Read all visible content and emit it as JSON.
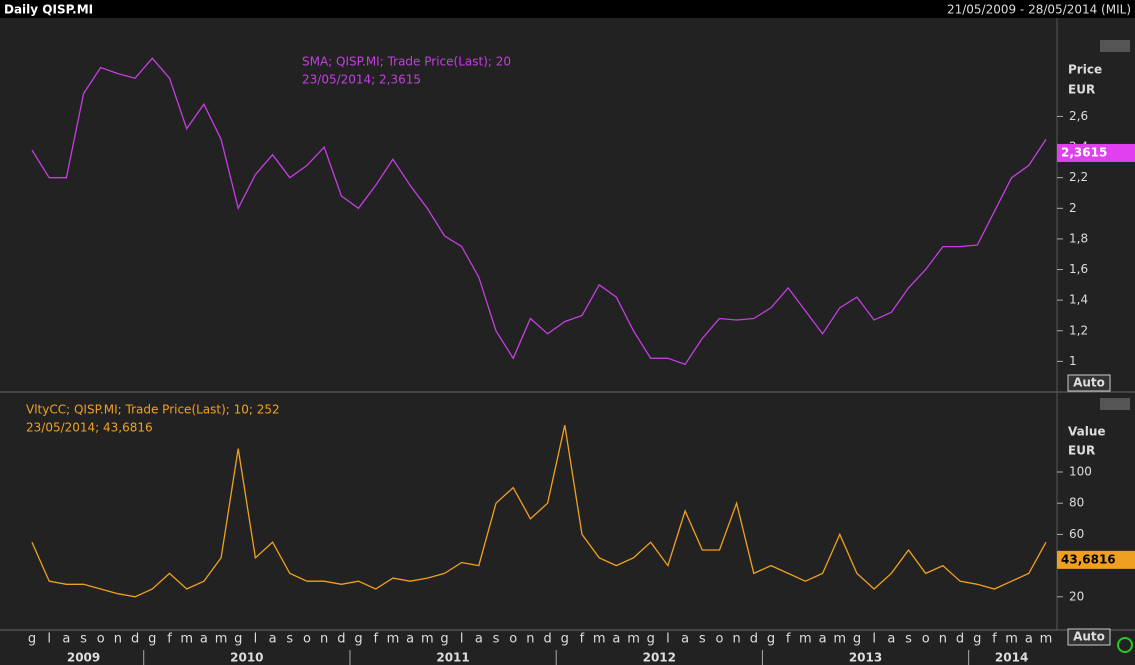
{
  "header": {
    "title": "Daily QISP.MI",
    "range": "21/05/2009 - 28/05/2014 (MIL)"
  },
  "x_axis": {
    "categories": [
      "g",
      "l",
      "a",
      "s",
      "o",
      "n",
      "d",
      "g",
      "f",
      "m",
      "a",
      "m",
      "g",
      "l",
      "a",
      "s",
      "o",
      "n",
      "d",
      "g",
      "f",
      "m",
      "a",
      "m",
      "g",
      "l",
      "a",
      "s",
      "o",
      "n",
      "d",
      "g",
      "f",
      "m",
      "a",
      "m",
      "g",
      "l",
      "a",
      "s",
      "o",
      "n",
      "d",
      "g",
      "f",
      "m",
      "a",
      "m",
      "g",
      "l",
      "a",
      "s",
      "o",
      "n",
      "d",
      "g",
      "f",
      "m",
      "a",
      "m"
    ],
    "years": [
      "2009",
      "2010",
      "2011",
      "2012",
      "2013",
      "2014"
    ]
  },
  "chart_data": [
    {
      "type": "line",
      "legend": [
        "SMA; QISP.MI; Trade Price(Last);  20",
        "23/05/2014; 2,3615"
      ],
      "y_label": "Price",
      "unit": "EUR",
      "auto": "Auto",
      "color": "#c43ee0",
      "marker_color": "#e040f0",
      "last": {
        "value": 2.3615,
        "label": "2,3615"
      },
      "ylim": [
        0.8,
        3.23
      ],
      "yticks": [
        1,
        {
          "value": 1.2,
          "label": "1,2"
        },
        {
          "value": 1.4,
          "label": "1,4"
        },
        {
          "value": 1.6,
          "label": "1,6"
        },
        {
          "value": 1.8,
          "label": "1,8"
        },
        2,
        {
          "value": 2.2,
          "label": "2,2"
        },
        {
          "value": 2.4,
          "label": "2,4"
        },
        {
          "value": 2.6,
          "label": "2,6"
        }
      ],
      "values": [
        2.38,
        2.2,
        2.2,
        2.75,
        2.92,
        2.88,
        2.85,
        2.98,
        2.85,
        2.52,
        2.68,
        2.45,
        2.0,
        2.22,
        2.35,
        2.2,
        2.28,
        2.4,
        2.08,
        2.0,
        2.15,
        2.32,
        2.15,
        2.0,
        1.82,
        1.75,
        1.55,
        1.2,
        1.02,
        1.28,
        1.18,
        1.26,
        1.3,
        1.5,
        1.42,
        1.2,
        1.02,
        1.02,
        0.98,
        1.15,
        1.28,
        1.27,
        1.28,
        1.35,
        1.48,
        1.33,
        1.18,
        1.35,
        1.42,
        1.27,
        1.32,
        1.48,
        1.6,
        1.75,
        1.75,
        1.76,
        1.98,
        2.2,
        2.28,
        2.45
      ]
    },
    {
      "type": "line",
      "legend": [
        "VltyCC; QISP.MI; Trade Price(Last);  10; 252",
        "23/05/2014; 43,6816"
      ],
      "y_label": "Value",
      "unit": "EUR",
      "auto": "Auto",
      "color": "#f0a020",
      "marker_color": "#f0a020",
      "last": {
        "value": 43.6816,
        "label": "43,6816"
      },
      "ylim": [
        0,
        150
      ],
      "yticks": [
        20,
        60,
        80,
        100
      ],
      "values": [
        55,
        30,
        28,
        28,
        25,
        22,
        20,
        25,
        35,
        25,
        30,
        45,
        115,
        45,
        55,
        35,
        30,
        30,
        28,
        30,
        25,
        32,
        30,
        32,
        35,
        42,
        40,
        80,
        90,
        70,
        80,
        130,
        60,
        45,
        40,
        45,
        55,
        40,
        75,
        50,
        50,
        80,
        35,
        40,
        35,
        30,
        35,
        60,
        35,
        25,
        35,
        50,
        35,
        40,
        30,
        28,
        25,
        30,
        35,
        55
      ]
    }
  ]
}
